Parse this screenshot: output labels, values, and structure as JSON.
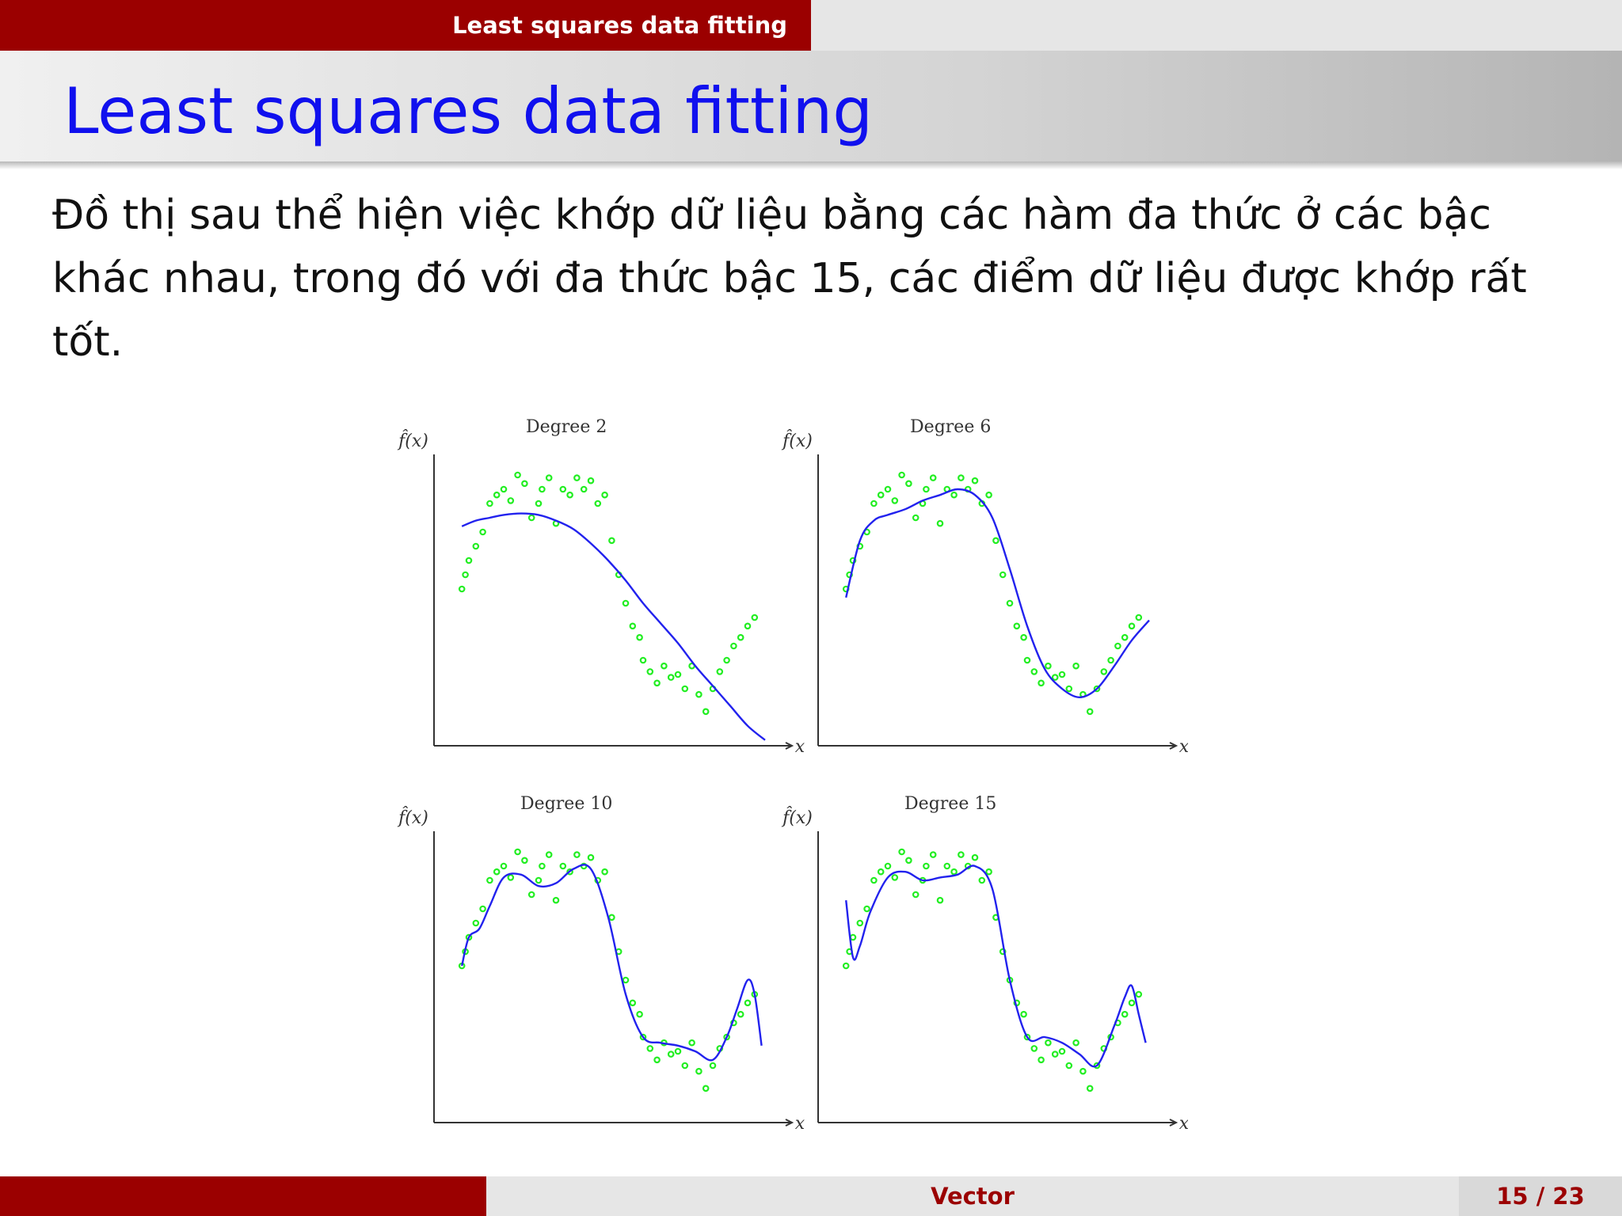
{
  "header": {
    "section_title": "Least squares data fitting"
  },
  "frame": {
    "title": "Least squares data fitting",
    "body": "Đồ thị sau thể hiện việc khớp dữ liệu bằng các hàm đa thức ở các bậc khác nhau, trong đó với đa thức bậc 15, các điểm dữ liệu được khớp rất tốt."
  },
  "footer": {
    "title": "Vector",
    "page": "15 / 23"
  },
  "colors": {
    "header_red": "#9b0000",
    "title_blue": "#1010ee",
    "fit_curve": "#2222ee",
    "data_points": "#22ee22"
  },
  "chart_data": [
    {
      "type": "line",
      "title": "Degree 2",
      "xlabel": "x",
      "ylabel": "f̂(x)",
      "xlim": [
        0,
        1
      ],
      "ylim": [
        0,
        1
      ],
      "grid": false,
      "series": [
        {
          "kind": "scatter",
          "x": [
            0.08,
            0.09,
            0.1,
            0.12,
            0.14,
            0.16,
            0.18,
            0.2,
            0.22,
            0.24,
            0.26,
            0.28,
            0.3,
            0.31,
            0.33,
            0.35,
            0.37,
            0.39,
            0.41,
            0.43,
            0.45,
            0.47,
            0.49,
            0.51,
            0.53,
            0.55,
            0.57,
            0.59,
            0.6,
            0.62,
            0.64,
            0.66,
            0.68,
            0.7,
            0.72,
            0.74,
            0.76,
            0.78,
            0.8,
            0.82,
            0.84,
            0.86,
            0.88,
            0.9,
            0.92
          ],
          "y": [
            0.55,
            0.6,
            0.65,
            0.7,
            0.75,
            0.85,
            0.88,
            0.9,
            0.86,
            0.95,
            0.92,
            0.8,
            0.85,
            0.9,
            0.94,
            0.78,
            0.9,
            0.88,
            0.94,
            0.9,
            0.93,
            0.85,
            0.88,
            0.72,
            0.6,
            0.5,
            0.42,
            0.38,
            0.3,
            0.26,
            0.22,
            0.28,
            0.24,
            0.25,
            0.2,
            0.28,
            0.18,
            0.12,
            0.2,
            0.26,
            0.3,
            0.35,
            0.38,
            0.42,
            0.45
          ]
        },
        {
          "kind": "line",
          "x": [
            0.08,
            0.12,
            0.16,
            0.2,
            0.25,
            0.3,
            0.35,
            0.4,
            0.45,
            0.5,
            0.55,
            0.6,
            0.65,
            0.7,
            0.75,
            0.8,
            0.85,
            0.9,
            0.95
          ],
          "y": [
            0.77,
            0.79,
            0.8,
            0.81,
            0.815,
            0.81,
            0.79,
            0.76,
            0.71,
            0.65,
            0.58,
            0.5,
            0.43,
            0.36,
            0.28,
            0.21,
            0.14,
            0.07,
            0.02
          ]
        }
      ]
    },
    {
      "type": "line",
      "title": "Degree 6",
      "xlabel": "x",
      "ylabel": "f̂(x)",
      "xlim": [
        0,
        1
      ],
      "ylim": [
        0,
        1
      ],
      "grid": false,
      "series": [
        {
          "kind": "scatter",
          "x": [
            0.08,
            0.09,
            0.1,
            0.12,
            0.14,
            0.16,
            0.18,
            0.2,
            0.22,
            0.24,
            0.26,
            0.28,
            0.3,
            0.31,
            0.33,
            0.35,
            0.37,
            0.39,
            0.41,
            0.43,
            0.45,
            0.47,
            0.49,
            0.51,
            0.53,
            0.55,
            0.57,
            0.59,
            0.6,
            0.62,
            0.64,
            0.66,
            0.68,
            0.7,
            0.72,
            0.74,
            0.76,
            0.78,
            0.8,
            0.82,
            0.84,
            0.86,
            0.88,
            0.9,
            0.92
          ],
          "y": [
            0.55,
            0.6,
            0.65,
            0.7,
            0.75,
            0.85,
            0.88,
            0.9,
            0.86,
            0.95,
            0.92,
            0.8,
            0.85,
            0.9,
            0.94,
            0.78,
            0.9,
            0.88,
            0.94,
            0.9,
            0.93,
            0.85,
            0.88,
            0.72,
            0.6,
            0.5,
            0.42,
            0.38,
            0.3,
            0.26,
            0.22,
            0.28,
            0.24,
            0.25,
            0.2,
            0.28,
            0.18,
            0.12,
            0.2,
            0.26,
            0.3,
            0.35,
            0.38,
            0.42,
            0.45
          ]
        },
        {
          "kind": "line",
          "x": [
            0.08,
            0.12,
            0.16,
            0.2,
            0.25,
            0.3,
            0.35,
            0.4,
            0.45,
            0.5,
            0.55,
            0.6,
            0.65,
            0.7,
            0.75,
            0.8,
            0.85,
            0.9,
            0.95
          ],
          "y": [
            0.52,
            0.72,
            0.79,
            0.81,
            0.83,
            0.86,
            0.88,
            0.9,
            0.88,
            0.8,
            0.62,
            0.42,
            0.27,
            0.2,
            0.17,
            0.2,
            0.28,
            0.37,
            0.44
          ]
        }
      ]
    },
    {
      "type": "line",
      "title": "Degree 10",
      "xlabel": "x",
      "ylabel": "f̂(x)",
      "xlim": [
        0,
        1
      ],
      "ylim": [
        0,
        1
      ],
      "grid": false,
      "series": [
        {
          "kind": "scatter",
          "x": [
            0.08,
            0.09,
            0.1,
            0.12,
            0.14,
            0.16,
            0.18,
            0.2,
            0.22,
            0.24,
            0.26,
            0.28,
            0.3,
            0.31,
            0.33,
            0.35,
            0.37,
            0.39,
            0.41,
            0.43,
            0.45,
            0.47,
            0.49,
            0.51,
            0.53,
            0.55,
            0.57,
            0.59,
            0.6,
            0.62,
            0.64,
            0.66,
            0.68,
            0.7,
            0.72,
            0.74,
            0.76,
            0.78,
            0.8,
            0.82,
            0.84,
            0.86,
            0.88,
            0.9,
            0.92
          ],
          "y": [
            0.55,
            0.6,
            0.65,
            0.7,
            0.75,
            0.85,
            0.88,
            0.9,
            0.86,
            0.95,
            0.92,
            0.8,
            0.85,
            0.9,
            0.94,
            0.78,
            0.9,
            0.88,
            0.94,
            0.9,
            0.93,
            0.85,
            0.88,
            0.72,
            0.6,
            0.5,
            0.42,
            0.38,
            0.3,
            0.26,
            0.22,
            0.28,
            0.24,
            0.25,
            0.2,
            0.28,
            0.18,
            0.12,
            0.2,
            0.26,
            0.3,
            0.35,
            0.38,
            0.42,
            0.45
          ]
        },
        {
          "kind": "line",
          "x": [
            0.08,
            0.1,
            0.13,
            0.16,
            0.2,
            0.25,
            0.3,
            0.35,
            0.4,
            0.45,
            0.5,
            0.55,
            0.6,
            0.65,
            0.7,
            0.75,
            0.8,
            0.84,
            0.87,
            0.9,
            0.92,
            0.94
          ],
          "y": [
            0.55,
            0.65,
            0.68,
            0.76,
            0.86,
            0.87,
            0.83,
            0.84,
            0.89,
            0.89,
            0.72,
            0.45,
            0.3,
            0.28,
            0.27,
            0.25,
            0.22,
            0.3,
            0.4,
            0.5,
            0.45,
            0.27
          ]
        }
      ]
    },
    {
      "type": "line",
      "title": "Degree 15",
      "xlabel": "x",
      "ylabel": "f̂(x)",
      "xlim": [
        0,
        1
      ],
      "ylim": [
        0,
        1
      ],
      "grid": false,
      "series": [
        {
          "kind": "scatter",
          "x": [
            0.08,
            0.09,
            0.1,
            0.12,
            0.14,
            0.16,
            0.18,
            0.2,
            0.22,
            0.24,
            0.26,
            0.28,
            0.3,
            0.31,
            0.33,
            0.35,
            0.37,
            0.39,
            0.41,
            0.43,
            0.45,
            0.47,
            0.49,
            0.51,
            0.53,
            0.55,
            0.57,
            0.59,
            0.6,
            0.62,
            0.64,
            0.66,
            0.68,
            0.7,
            0.72,
            0.74,
            0.76,
            0.78,
            0.8,
            0.82,
            0.84,
            0.86,
            0.88,
            0.9,
            0.92
          ],
          "y": [
            0.55,
            0.6,
            0.65,
            0.7,
            0.75,
            0.85,
            0.88,
            0.9,
            0.86,
            0.95,
            0.92,
            0.8,
            0.85,
            0.9,
            0.94,
            0.78,
            0.9,
            0.88,
            0.94,
            0.9,
            0.93,
            0.85,
            0.88,
            0.72,
            0.6,
            0.5,
            0.42,
            0.38,
            0.3,
            0.26,
            0.22,
            0.28,
            0.24,
            0.25,
            0.2,
            0.28,
            0.18,
            0.12,
            0.2,
            0.26,
            0.3,
            0.35,
            0.38,
            0.42,
            0.45
          ]
        },
        {
          "kind": "line",
          "x": [
            0.08,
            0.1,
            0.12,
            0.15,
            0.2,
            0.25,
            0.3,
            0.35,
            0.4,
            0.45,
            0.5,
            0.55,
            0.6,
            0.65,
            0.7,
            0.75,
            0.8,
            0.85,
            0.88,
            0.9,
            0.92,
            0.94
          ],
          "y": [
            0.78,
            0.58,
            0.62,
            0.74,
            0.86,
            0.88,
            0.85,
            0.86,
            0.87,
            0.9,
            0.82,
            0.5,
            0.3,
            0.3,
            0.28,
            0.24,
            0.2,
            0.34,
            0.44,
            0.48,
            0.38,
            0.28
          ]
        }
      ]
    }
  ]
}
